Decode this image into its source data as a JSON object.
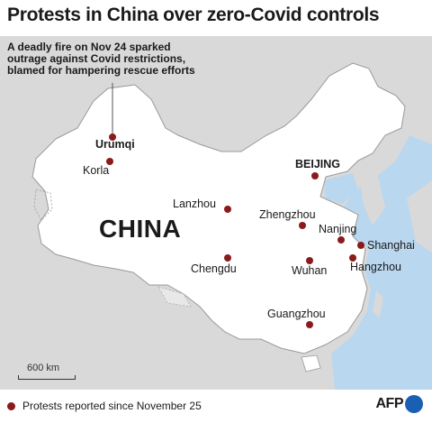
{
  "title": "Protests in China over zero-Covid controls",
  "annotation": "A deadly fire on Nov 24 sparked outrage against Covid restrictions, blamed for hampering rescue efforts",
  "country_label": "CHINA",
  "cities": [
    {
      "name": "Urumqi",
      "bold": true
    },
    {
      "name": "Korla",
      "bold": false
    },
    {
      "name": "BEIJING",
      "bold": true
    },
    {
      "name": "Lanzhou",
      "bold": false
    },
    {
      "name": "Zhengzhou",
      "bold": false
    },
    {
      "name": "Nanjing",
      "bold": false
    },
    {
      "name": "Shanghai",
      "bold": false
    },
    {
      "name": "Chengdu",
      "bold": false
    },
    {
      "name": "Wuhan",
      "bold": false
    },
    {
      "name": "Hangzhou",
      "bold": false
    },
    {
      "name": "Guangzhou",
      "bold": false
    }
  ],
  "scale_label": "600 km",
  "legend_label": "Protests reported since November 25",
  "credit": "AFP",
  "colors": {
    "land": "#ffffff",
    "outside": "#d9d9d9",
    "sea": "#b9d7ef",
    "marker": "#8b1a1a",
    "afp_blue": "#1a5fb4"
  }
}
